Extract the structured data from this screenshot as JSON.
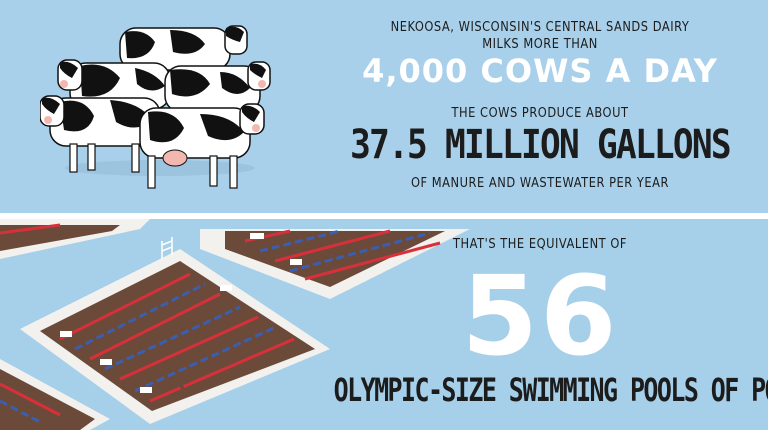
{
  "top": {
    "intro_line1": "NEKOOSA, WISCONSIN'S CENTRAL SANDS DAIRY",
    "intro_line2": "MILKS MORE THAN",
    "cows_count": "4,000 COWS A DAY",
    "produce_intro": "THE COWS PRODUCE ABOUT",
    "gallons": "37.5 MILLION GALLONS",
    "gallons_suffix": "OF MANURE AND WASTEWATER PER YEAR"
  },
  "bottom": {
    "equivalent_intro": "THAT'S THE EQUIVALENT OF",
    "pools_count": "56",
    "pools_label": "OLYMPIC-SIZE SWIMMING POOLS OF POOP"
  },
  "colors": {
    "background": "#a8d0ea",
    "pool_fill": "#6b4a3a",
    "pool_border": "#f3f1ee",
    "lane_red": "#d8303a",
    "lane_blue": "#3a5fb0"
  },
  "icons": [
    "cow-herd-illustration",
    "swimming-pool-illustration",
    "pool-ladder-icon"
  ]
}
